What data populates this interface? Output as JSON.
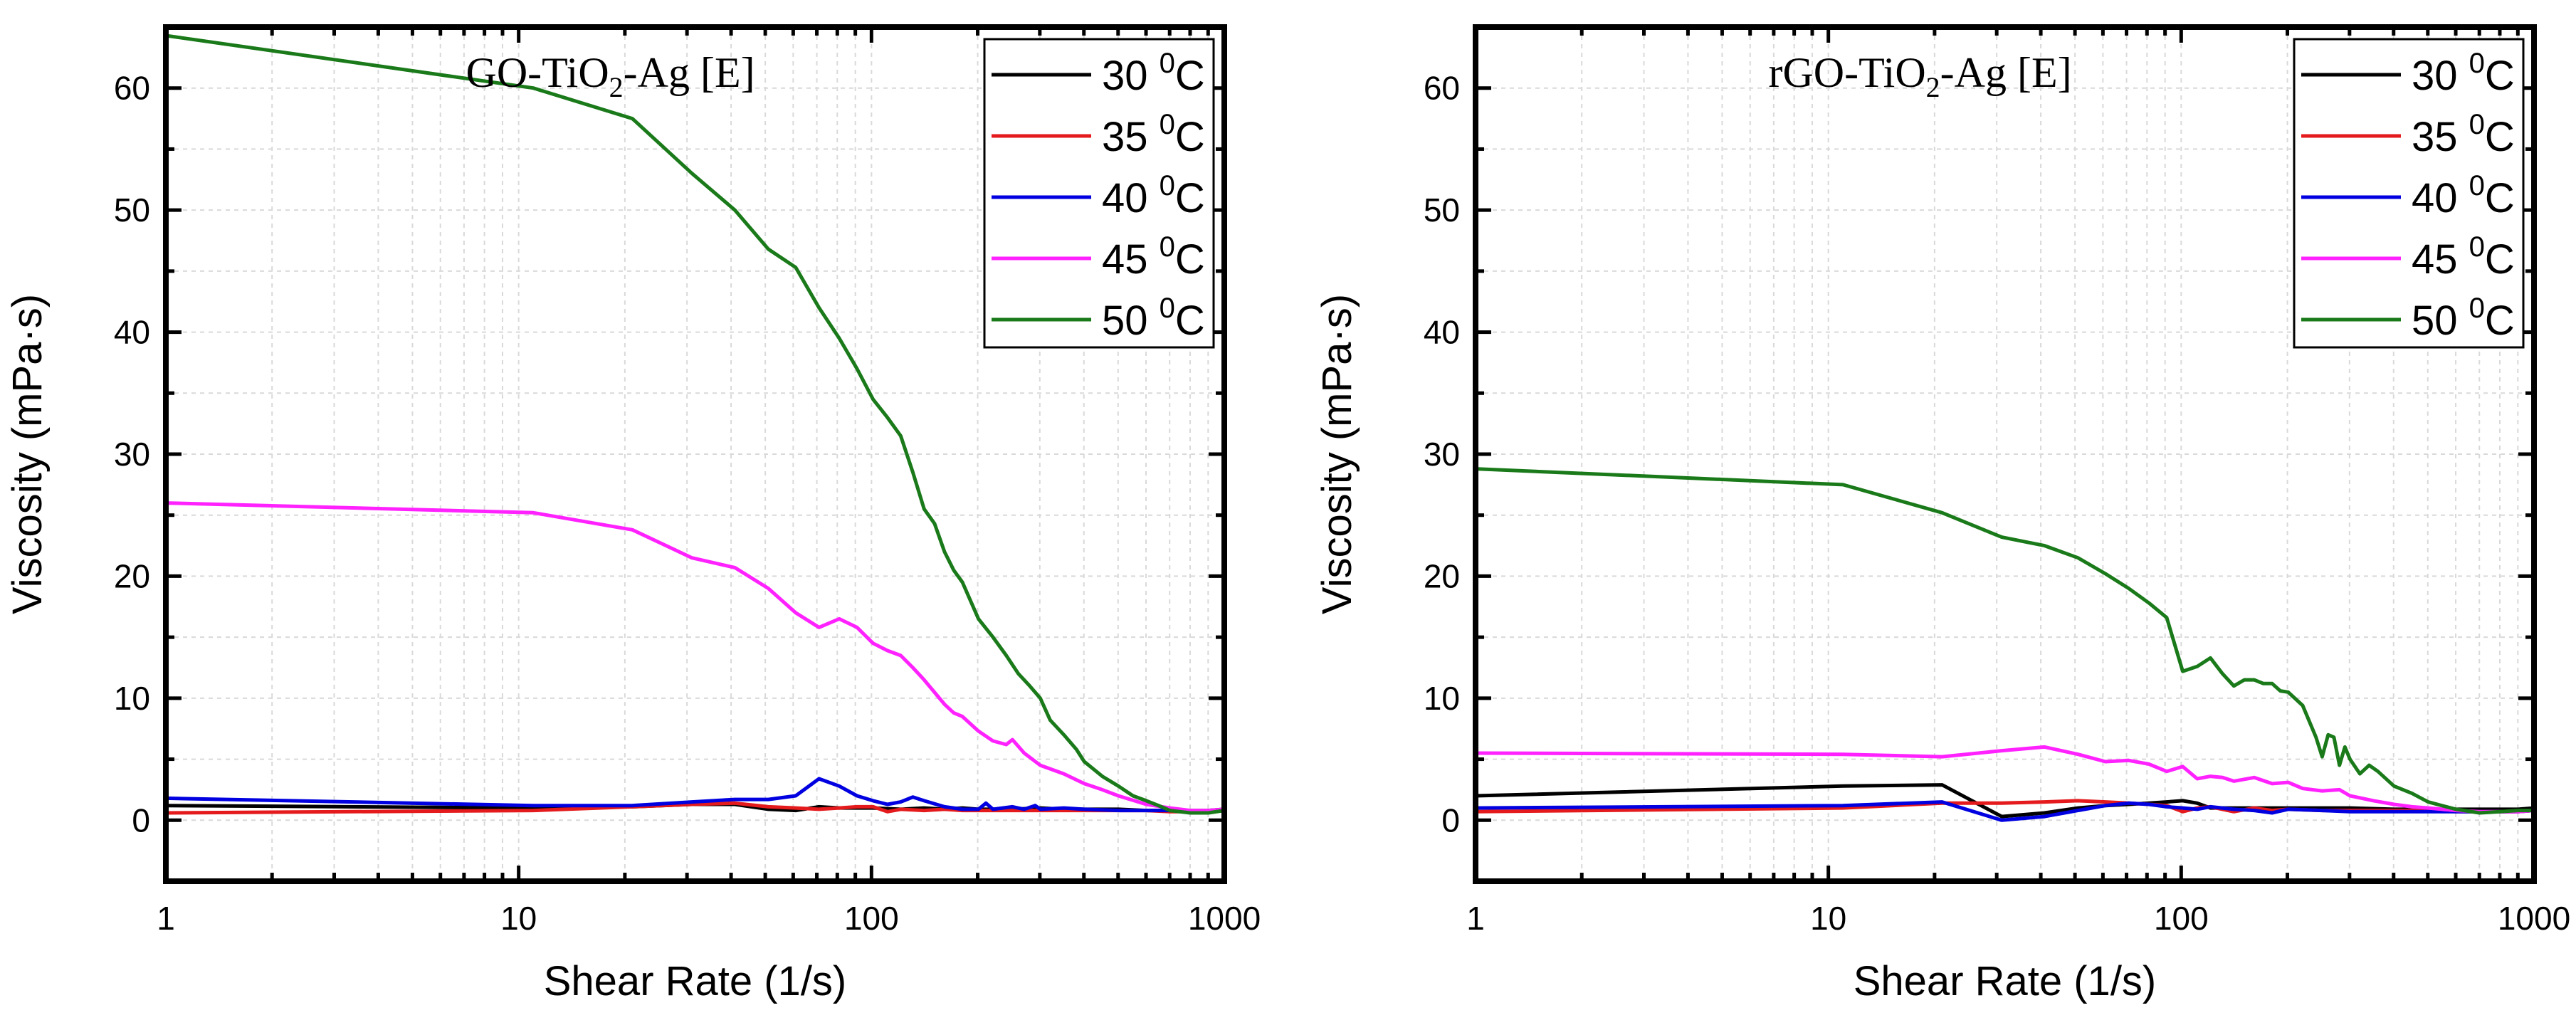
{
  "chart_data": [
    {
      "type": "line",
      "title": "GO-TiO₂-Ag [E]",
      "title_main": "GO-TiO",
      "title_sub": "2",
      "title_rest": "-Ag [E]",
      "xlabel": "Shear Rate (1/s)",
      "ylabel": "Viscosity (mPa·s)",
      "xscale": "log",
      "xlim": [
        1,
        1000
      ],
      "ylim": [
        -5,
        65
      ],
      "xticks": [
        1,
        10,
        100,
        1000
      ],
      "xtick_labels": [
        "1",
        "10",
        "100",
        "1000"
      ],
      "yticks": [
        0,
        10,
        20,
        30,
        40,
        50,
        60
      ],
      "ytick_labels": [
        "0",
        "10",
        "20",
        "30",
        "40",
        "50",
        "60"
      ],
      "grid": true,
      "legend_position": "top-right",
      "series": [
        {
          "name": "30 ⁰C",
          "label_main": "30 ",
          "label_sup": "0",
          "label_rest": "C",
          "color": "#000000",
          "x": [
            1,
            11,
            21,
            31,
            41,
            51,
            61,
            71,
            81,
            91,
            101,
            121,
            141,
            161,
            181,
            201,
            251,
            301,
            351,
            401,
            501,
            601,
            701,
            801,
            901,
            1000
          ],
          "y": [
            1.2,
            1.0,
            1.1,
            1.3,
            1.3,
            0.9,
            0.8,
            1.1,
            1.0,
            1.0,
            1.0,
            0.9,
            1.0,
            0.9,
            1.0,
            0.9,
            0.9,
            1.0,
            0.9,
            0.9,
            0.9,
            0.8,
            0.8,
            0.8,
            0.8,
            0.9
          ]
        },
        {
          "name": "35 ⁰C",
          "label_main": "35 ",
          "label_sup": "0",
          "label_rest": "C",
          "color": "#e41a1c",
          "x": [
            1,
            11,
            21,
            31,
            41,
            51,
            61,
            71,
            81,
            91,
            101,
            111,
            121,
            141,
            161,
            181,
            201,
            251,
            301,
            401,
            501,
            601,
            701,
            801,
            901,
            1000
          ],
          "y": [
            0.6,
            0.8,
            1.1,
            1.3,
            1.4,
            1.1,
            1.0,
            0.9,
            1.0,
            1.1,
            1.1,
            0.7,
            0.9,
            0.8,
            0.9,
            0.8,
            0.8,
            0.8,
            0.8,
            0.8,
            0.8,
            0.8,
            0.7,
            0.7,
            0.7,
            0.8
          ]
        },
        {
          "name": "40 ⁰C",
          "label_main": "40 ",
          "label_sup": "0",
          "label_rest": "C",
          "color": "#0000e0",
          "x": [
            1,
            11,
            21,
            31,
            41,
            51,
            61,
            71,
            81,
            91,
            101,
            111,
            121,
            131,
            141,
            161,
            181,
            201,
            211,
            221,
            251,
            271,
            291,
            301,
            351,
            401,
            501,
            601,
            701,
            801,
            901,
            1000
          ],
          "y": [
            1.8,
            1.2,
            1.2,
            1.5,
            1.7,
            1.7,
            2.0,
            3.4,
            2.8,
            2.0,
            1.6,
            1.3,
            1.5,
            1.9,
            1.6,
            1.1,
            0.9,
            0.9,
            1.4,
            0.9,
            1.1,
            0.9,
            1.2,
            0.9,
            1.0,
            0.9,
            0.8,
            0.8,
            0.8,
            0.7,
            0.7,
            0.8
          ]
        },
        {
          "name": "45 ⁰C",
          "label_main": "45 ",
          "label_sup": "0",
          "label_rest": "C",
          "color": "#ff22ff",
          "x": [
            1,
            11,
            21,
            31,
            41,
            51,
            61,
            71,
            81,
            91,
            101,
            111,
            121,
            131,
            141,
            161,
            171,
            181,
            201,
            221,
            241,
            251,
            271,
            301,
            351,
            401,
            451,
            501,
            601,
            701,
            801,
            901,
            1000
          ],
          "y": [
            26.0,
            25.2,
            23.8,
            21.5,
            20.7,
            19.0,
            17.0,
            15.8,
            16.5,
            15.8,
            14.5,
            13.9,
            13.5,
            12.5,
            11.5,
            9.5,
            8.8,
            8.5,
            7.3,
            6.5,
            6.2,
            6.6,
            5.5,
            4.5,
            3.8,
            3.0,
            2.5,
            2.0,
            1.3,
            1.0,
            0.8,
            0.8,
            0.9
          ]
        },
        {
          "name": "50 ⁰C",
          "label_main": "50 ",
          "label_sup": "0",
          "label_rest": "C",
          "color": "#1a7a1a",
          "x": [
            1,
            11,
            21,
            31,
            41,
            51,
            61,
            71,
            81,
            91,
            101,
            111,
            121,
            131,
            141,
            151,
            161,
            171,
            181,
            201,
            221,
            241,
            261,
            281,
            301,
            321,
            351,
            381,
            401,
            451,
            501,
            551,
            601,
            651,
            701,
            801,
            901,
            1000
          ],
          "y": [
            64.3,
            60.0,
            57.5,
            53.0,
            50.0,
            46.8,
            45.3,
            42.0,
            39.5,
            37.0,
            34.5,
            33.0,
            31.5,
            28.5,
            25.5,
            24.3,
            22.0,
            20.5,
            19.5,
            16.5,
            15.0,
            13.5,
            12.0,
            11.0,
            10.0,
            8.2,
            7.0,
            5.8,
            4.8,
            3.6,
            2.8,
            2.0,
            1.6,
            1.2,
            0.8,
            0.6,
            0.6,
            0.8
          ]
        }
      ]
    },
    {
      "type": "line",
      "title": "rGO-TiO₂-Ag [E]",
      "title_main": "rGO-TiO",
      "title_sub": "2",
      "title_rest": "-Ag [E]",
      "xlabel": "Shear Rate (1/s)",
      "ylabel": "Viscosity (mPa·s)",
      "xscale": "log",
      "xlim": [
        1,
        1000
      ],
      "ylim": [
        -5,
        65
      ],
      "xticks": [
        1,
        10,
        100,
        1000
      ],
      "xtick_labels": [
        "1",
        "10",
        "100",
        "1000"
      ],
      "yticks": [
        0,
        10,
        20,
        30,
        40,
        50,
        60
      ],
      "ytick_labels": [
        "0",
        "10",
        "20",
        "30",
        "40",
        "50",
        "60"
      ],
      "grid": true,
      "legend_position": "top-right",
      "series": [
        {
          "name": "30 ⁰C",
          "label_main": "30 ",
          "label_sup": "0",
          "label_rest": "C",
          "color": "#000000",
          "x": [
            1,
            11,
            21,
            31,
            41,
            51,
            61,
            71,
            81,
            91,
            101,
            111,
            121,
            141,
            161,
            201,
            251,
            301,
            401,
            501,
            601,
            701,
            801,
            901,
            1000
          ],
          "y": [
            2.0,
            2.8,
            2.9,
            0.3,
            0.6,
            1.0,
            1.2,
            1.3,
            1.4,
            1.5,
            1.6,
            1.4,
            1.0,
            1.0,
            1.0,
            1.0,
            1.0,
            1.0,
            0.9,
            0.9,
            0.9,
            0.9,
            0.9,
            0.9,
            1.0
          ]
        },
        {
          "name": "35 ⁰C",
          "label_main": "35 ",
          "label_sup": "0",
          "label_rest": "C",
          "color": "#e41a1c",
          "x": [
            1,
            11,
            21,
            31,
            41,
            51,
            61,
            71,
            81,
            91,
            101,
            111,
            121,
            141,
            161,
            181,
            201,
            251,
            301,
            401,
            501,
            601,
            701,
            801,
            901,
            1000
          ],
          "y": [
            0.7,
            1.0,
            1.4,
            1.4,
            1.5,
            1.6,
            1.5,
            1.4,
            1.3,
            1.2,
            0.7,
            1.0,
            1.1,
            0.7,
            1.0,
            0.8,
            0.9,
            0.8,
            0.8,
            0.8,
            0.8,
            0.7,
            0.7,
            0.7,
            0.7,
            0.8
          ]
        },
        {
          "name": "40 ⁰C",
          "label_main": "40 ",
          "label_sup": "0",
          "label_rest": "C",
          "color": "#0000e0",
          "x": [
            1,
            11,
            21,
            31,
            41,
            51,
            61,
            71,
            81,
            91,
            101,
            111,
            121,
            141,
            161,
            181,
            201,
            251,
            301,
            401,
            501,
            601,
            701,
            801,
            901,
            1000
          ],
          "y": [
            1.0,
            1.2,
            1.5,
            0.0,
            0.3,
            0.8,
            1.2,
            1.4,
            1.3,
            1.1,
            1.0,
            0.9,
            1.1,
            0.9,
            0.8,
            0.6,
            0.9,
            0.8,
            0.7,
            0.7,
            0.7,
            0.7,
            0.7,
            0.7,
            0.7,
            0.8
          ]
        },
        {
          "name": "45 ⁰C",
          "label_main": "45 ",
          "label_sup": "0",
          "label_rest": "C",
          "color": "#ff22ff",
          "x": [
            1,
            11,
            21,
            31,
            41,
            51,
            61,
            71,
            81,
            91,
            101,
            111,
            121,
            131,
            141,
            161,
            181,
            201,
            221,
            251,
            281,
            301,
            351,
            401,
            451,
            501,
            601,
            701,
            801,
            901,
            1000
          ],
          "y": [
            5.5,
            5.4,
            5.2,
            5.7,
            6.0,
            5.4,
            4.8,
            4.9,
            4.6,
            4.0,
            4.4,
            3.4,
            3.6,
            3.5,
            3.2,
            3.5,
            3.0,
            3.1,
            2.6,
            2.4,
            2.5,
            2.0,
            1.6,
            1.3,
            1.1,
            1.0,
            0.8,
            0.7,
            0.7,
            0.7,
            0.8
          ]
        },
        {
          "name": "50 ⁰C",
          "label_main": "50 ",
          "label_sup": "0",
          "label_rest": "C",
          "color": "#1a7a1a",
          "x": [
            1,
            11,
            21,
            31,
            41,
            51,
            61,
            71,
            81,
            91,
            101,
            111,
            121,
            131,
            141,
            151,
            161,
            171,
            181,
            191,
            201,
            221,
            241,
            251,
            261,
            271,
            281,
            291,
            301,
            321,
            341,
            361,
            401,
            451,
            501,
            601,
            701,
            801,
            901,
            1000
          ],
          "y": [
            28.8,
            27.5,
            25.2,
            23.2,
            22.5,
            21.5,
            20.2,
            19.0,
            17.8,
            16.6,
            12.2,
            12.6,
            13.3,
            12.0,
            11.0,
            11.5,
            11.5,
            11.2,
            11.2,
            10.6,
            10.5,
            9.4,
            6.8,
            5.2,
            7.0,
            6.8,
            4.5,
            6.0,
            5.0,
            3.8,
            4.5,
            4.0,
            2.8,
            2.2,
            1.5,
            0.9,
            0.6,
            0.7,
            0.8,
            0.8
          ]
        }
      ]
    }
  ]
}
